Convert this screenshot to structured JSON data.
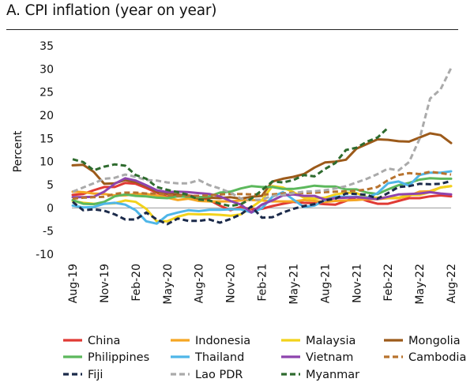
{
  "title": "A. CPI inflation (year on year)",
  "chart_data": {
    "type": "line",
    "title": "A. CPI inflation (year on year)",
    "ylabel": "Percent",
    "xlabel": "",
    "ylim": [
      -10,
      35
    ],
    "yticks": [
      -10,
      -5,
      0,
      5,
      10,
      15,
      20,
      25,
      30,
      35
    ],
    "x_start": "Aug-19",
    "n_months": 37,
    "x_tick_labels": [
      "Aug-19",
      "Nov-19",
      "Feb-20",
      "May-20",
      "Aug-20",
      "Nov-20",
      "Feb-21",
      "May-21",
      "Aug-21",
      "Nov-21",
      "Feb-22",
      "May-22",
      "Aug-22"
    ],
    "x_tick_every": 3,
    "legend_position": "bottom",
    "series": [
      {
        "name": "China",
        "color": "#e03a34",
        "dash": "solid",
        "start": 0,
        "values": [
          2.8,
          3.0,
          3.8,
          4.5,
          4.5,
          5.4,
          5.2,
          4.3,
          3.3,
          2.4,
          2.5,
          2.7,
          2.4,
          1.7,
          0.5,
          -0.5,
          0.2,
          -0.3,
          -0.2,
          0.4,
          0.9,
          1.3,
          1.1,
          1.0,
          0.8,
          0.7,
          1.5,
          2.3,
          1.5,
          0.9,
          0.9,
          1.5,
          2.1,
          2.1,
          2.5,
          2.7,
          2.5
        ]
      },
      {
        "name": "Indonesia",
        "color": "#f5a623",
        "dash": "solid",
        "start": 0,
        "values": [
          3.5,
          3.4,
          3.1,
          3.0,
          2.7,
          2.7,
          3.0,
          3.0,
          2.7,
          2.2,
          1.7,
          2.0,
          1.5,
          1.4,
          1.4,
          1.4,
          1.6,
          1.7,
          1.6,
          1.4,
          1.4,
          1.4,
          1.7,
          1.5,
          1.3,
          1.5,
          1.6,
          1.7,
          1.9,
          1.9,
          2.1,
          2.1,
          2.6,
          3.5,
          3.6,
          4.4,
          4.7
        ]
      },
      {
        "name": "Malaysia",
        "color": "#f2d21b",
        "dash": "solid",
        "start": 0,
        "values": [
          1.5,
          1.1,
          0.9,
          0.9,
          1.0,
          1.6,
          1.3,
          -0.2,
          -2.9,
          -2.9,
          -1.9,
          -1.3,
          -1.4,
          -1.4,
          -1.5,
          -1.7,
          -1.4,
          0.1,
          1.7,
          4.7,
          4.4,
          3.4,
          2.2,
          2.0,
          2.2,
          2.9,
          3.3,
          3.2,
          2.3,
          2.2,
          2.2,
          2.2,
          2.8,
          2.8,
          3.4,
          4.4,
          4.7
        ]
      },
      {
        "name": "Mongolia",
        "color": "#9c5a1a",
        "dash": "solid",
        "start": 0,
        "values": [
          9.2,
          9.3,
          7.8,
          5.2,
          5.3,
          6.0,
          5.6,
          4.7,
          3.5,
          3.0,
          2.9,
          2.5,
          2.0,
          2.2,
          2.1,
          2.3,
          2.0,
          2.4,
          2.6,
          5.7,
          6.3,
          6.7,
          7.3,
          8.7,
          9.8,
          10.0,
          10.4,
          12.8,
          13.8,
          14.8,
          14.7,
          14.4,
          14.3,
          15.2,
          16.1,
          15.7,
          14.0
        ]
      },
      {
        "name": "Philippines",
        "color": "#5cb85c",
        "dash": "solid",
        "start": 0,
        "values": [
          1.7,
          0.9,
          0.8,
          1.3,
          2.5,
          2.9,
          2.6,
          2.5,
          2.2,
          2.1,
          2.5,
          2.4,
          2.3,
          2.5,
          3.3,
          3.5,
          4.2,
          4.7,
          4.5,
          4.5,
          4.1,
          4.1,
          4.4,
          4.8,
          4.6,
          4.6,
          4.0,
          4.0,
          3.3,
          3.0,
          4.0,
          4.9,
          5.4,
          6.1,
          6.4,
          6.3,
          6.3
        ]
      },
      {
        "name": "Thailand",
        "color": "#4fb6e8",
        "dash": "solid",
        "start": 0,
        "values": [
          0.5,
          0.1,
          0.2,
          0.9,
          1.1,
          0.7,
          -0.5,
          -2.9,
          -3.4,
          -1.6,
          -1.0,
          -0.5,
          -0.7,
          -0.4,
          -0.4,
          -0.3,
          -0.3,
          -1.0,
          -0.1,
          2.4,
          3.4,
          1.8,
          0.2,
          0.5,
          1.7,
          2.4,
          2.4,
          2.4,
          2.2,
          3.2,
          5.3,
          5.7,
          4.8,
          7.1,
          7.6,
          7.6,
          7.9
        ]
      },
      {
        "name": "Vietnam",
        "color": "#8e44ad",
        "dash": "solid",
        "start": 0,
        "values": [
          2.3,
          2.3,
          2.4,
          3.5,
          5.2,
          6.4,
          5.9,
          4.9,
          3.8,
          3.4,
          3.5,
          3.4,
          3.2,
          3.0,
          2.5,
          1.5,
          0.7,
          -1.0,
          0.7,
          1.6,
          2.7,
          2.9,
          2.6,
          2.6,
          1.8,
          2.1,
          2.2,
          2.3,
          2.1,
          1.9,
          2.4,
          2.9,
          3.0,
          3.1,
          3.4,
          3.1,
          2.9
        ]
      },
      {
        "name": "Cambodia",
        "color": "#b8732e",
        "dash": "dashed",
        "start": 0,
        "values": [
          2.0,
          2.2,
          2.3,
          2.4,
          3.0,
          3.3,
          3.3,
          3.1,
          3.1,
          2.8,
          2.6,
          2.6,
          2.6,
          2.7,
          2.9,
          3.0,
          3.0,
          2.9,
          2.9,
          2.9,
          3.1,
          3.3,
          3.2,
          3.3,
          3.4,
          3.5,
          3.6,
          3.7,
          4.0,
          4.5,
          6.0,
          7.1,
          7.5,
          7.3,
          7.8,
          7.5,
          7.2
        ]
      },
      {
        "name": "Fiji",
        "color": "#1b2a4a",
        "dash": "dashed",
        "start": 0,
        "values": [
          1.3,
          -0.5,
          -0.3,
          -0.6,
          -1.4,
          -2.5,
          -2.5,
          -1.0,
          -2.5,
          -3.5,
          -2.3,
          -2.8,
          -2.8,
          -2.5,
          -3.2,
          -2.4,
          -1.4,
          0.3,
          -2.1,
          -2.0,
          -1.0,
          -0.2,
          0.4,
          0.8,
          1.6,
          2.0,
          3.1,
          3.0,
          2.8,
          2.0,
          3.2,
          4.5,
          4.7,
          5.2,
          5.1,
          5.2,
          5.8
        ]
      },
      {
        "name": "Lao PDR",
        "color": "#aaaaaa",
        "dash": "dashed",
        "start": 0,
        "values": [
          3.5,
          4.4,
          5.3,
          6.3,
          6.5,
          7.2,
          6.7,
          6.0,
          5.9,
          5.5,
          5.3,
          5.3,
          6.0,
          4.9,
          4.2,
          3.3,
          2.0,
          1.7,
          1.8,
          2.6,
          2.8,
          3.2,
          3.5,
          3.6,
          3.8,
          4.2,
          4.7,
          5.5,
          6.3,
          7.3,
          8.5,
          8.1,
          9.9,
          14.9,
          23.6,
          25.6,
          30.2
        ]
      },
      {
        "name": "Myanmar",
        "color": "#2e6b2e",
        "dash": "dashed",
        "start": 0,
        "values": [
          10.5,
          9.9,
          8.1,
          8.9,
          9.4,
          9.1,
          7.1,
          6.3,
          4.5,
          3.9,
          3.4,
          2.8,
          1.8,
          1.6,
          0.9,
          0.4,
          0.8,
          2.0,
          3.8,
          5.7,
          5.5,
          6.0,
          7.1,
          6.8,
          8.4,
          9.7,
          12.5,
          13.0,
          14.3,
          15.2,
          17.3
        ]
      }
    ]
  }
}
